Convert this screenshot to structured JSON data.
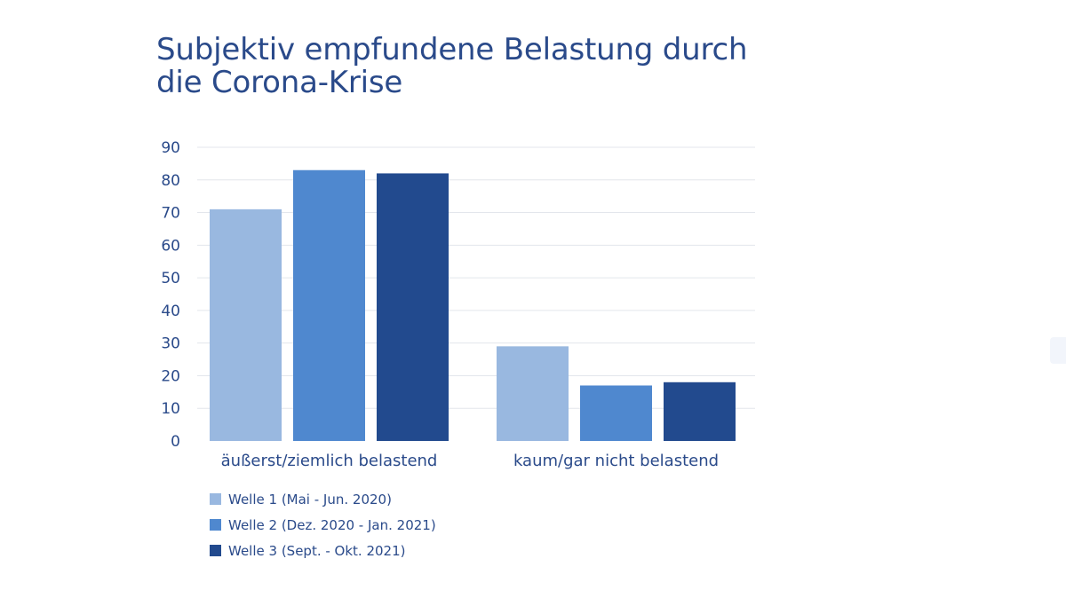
{
  "chart_data": {
    "type": "bar",
    "title": "Subjektiv empfundene Belastung durch die Corona-Krise",
    "categories": [
      "äußerst/ziemlich belastend",
      "kaum/gar nicht belastend"
    ],
    "series": [
      {
        "name": "Welle 1 (Mai - Jun. 2020)",
        "values": [
          71,
          29
        ],
        "color": "#99b8e0"
      },
      {
        "name": "Welle 2 (Dez. 2020 - Jan. 2021)",
        "values": [
          83,
          17
        ],
        "color": "#4f88cf"
      },
      {
        "name": "Welle 3 (Sept. - Okt. 2021)",
        "values": [
          82,
          18
        ],
        "color": "#224a8e"
      }
    ],
    "ylim": [
      0,
      90
    ],
    "yticks": [
      "0",
      "10",
      "20",
      "30",
      "40",
      "50",
      "60",
      "70",
      "80",
      "90"
    ],
    "grid": true,
    "legend_position": "bottom-left",
    "xlabel": "",
    "ylabel": ""
  },
  "colors": {
    "text": "#2a4a8a",
    "grid": "#e3e6ec"
  }
}
